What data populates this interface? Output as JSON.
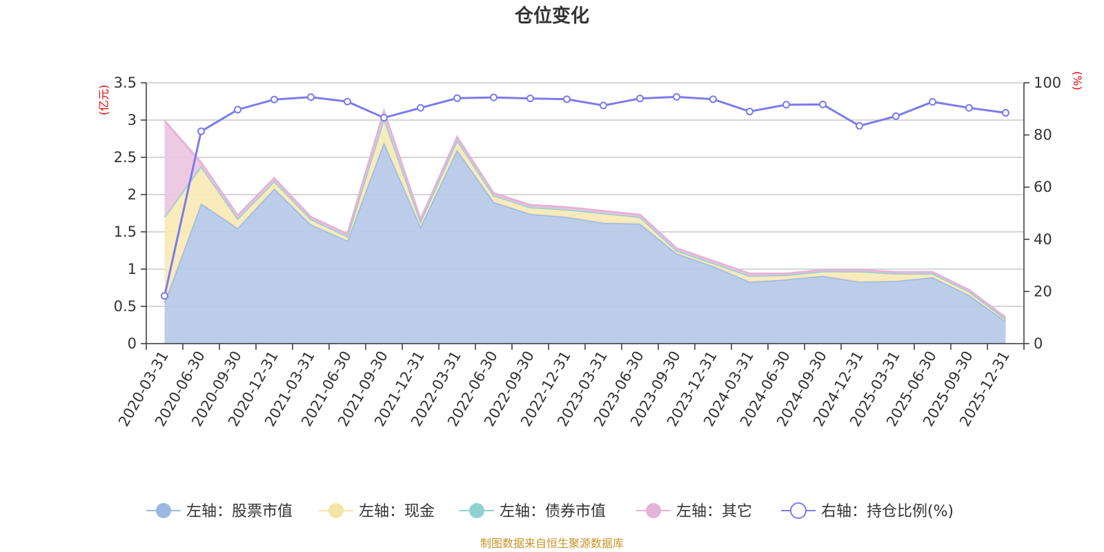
{
  "chart_data": {
    "type": "area",
    "title": "仓位变化",
    "left_axis_unit": "(亿元)",
    "right_axis_unit": "(%)",
    "left_ylim": [
      0,
      3.5
    ],
    "left_yticks": [
      "0",
      "0.5",
      "1",
      "1.5",
      "2",
      "2.5",
      "3",
      "3.5"
    ],
    "right_ylim": [
      0,
      100
    ],
    "right_yticks": [
      "0",
      "20",
      "40",
      "60",
      "80",
      "100"
    ],
    "grid": true,
    "legend_position": "bottom",
    "source": "制图数据来自恒生聚源数据库",
    "categories": [
      "2020-03-31",
      "2020-06-30",
      "2020-09-30",
      "2020-12-31",
      "2021-03-31",
      "2021-06-30",
      "2021-09-30",
      "2021-12-31",
      "2022-03-31",
      "2022-06-30",
      "2022-09-30",
      "2022-12-31",
      "2023-03-31",
      "2023-06-30",
      "2023-09-30",
      "2023-12-31",
      "2024-03-31",
      "2024-06-30",
      "2024-09-30",
      "2024-12-31",
      "2025-03-31",
      "2025-06-30",
      "2025-09-30",
      "2025-12-31"
    ],
    "series": [
      {
        "name": "左轴：股票市值",
        "axis": "left",
        "kind": "stacked-area",
        "color": "#9cb8e2",
        "fill": "#b6c9e8",
        "values": [
          0.55,
          1.88,
          1.55,
          2.08,
          1.6,
          1.38,
          2.7,
          1.57,
          2.6,
          1.9,
          1.74,
          1.7,
          1.62,
          1.61,
          1.21,
          1.04,
          0.83,
          0.86,
          0.91,
          0.83,
          0.84,
          0.89,
          0.65,
          0.3
        ]
      },
      {
        "name": "左轴：现金",
        "axis": "left",
        "kind": "stacked-area",
        "color": "#f5e4a2",
        "fill": "#f8e9b6",
        "values": [
          1.15,
          0.5,
          0.13,
          0.1,
          0.07,
          0.06,
          0.32,
          0.07,
          0.13,
          0.09,
          0.09,
          0.1,
          0.13,
          0.09,
          0.04,
          0.04,
          0.08,
          0.06,
          0.06,
          0.14,
          0.1,
          0.05,
          0.05,
          0.03
        ]
      },
      {
        "name": "左轴：债券市值",
        "axis": "left",
        "kind": "stacked-area",
        "color": "#8fd1d1",
        "fill": "#a8dcdc",
        "values": [
          0,
          0,
          0,
          0,
          0,
          0,
          0,
          0,
          0,
          0,
          0,
          0,
          0,
          0,
          0,
          0,
          0,
          0,
          0,
          0,
          0,
          0,
          0,
          0
        ]
      },
      {
        "name": "左轴：其它",
        "axis": "left",
        "kind": "stacked-area",
        "color": "#e6b3d8",
        "fill": "#ecc4e0",
        "values": [
          1.29,
          0.05,
          0.04,
          0.04,
          0.03,
          0.03,
          0.1,
          0.03,
          0.04,
          0.03,
          0.03,
          0.03,
          0.03,
          0.03,
          0.03,
          0.03,
          0.03,
          0.02,
          0.02,
          0.02,
          0.02,
          0.02,
          0.02,
          0.02
        ]
      },
      {
        "name": "右轴：持仓比例(%)",
        "axis": "right",
        "kind": "line",
        "color": "#7b7bea",
        "values": [
          18.3,
          81.4,
          89.7,
          93.6,
          94.5,
          92.8,
          86.6,
          90.4,
          94.1,
          94.4,
          94.0,
          93.7,
          91.3,
          94.0,
          94.6,
          93.7,
          89.0,
          91.6,
          91.7,
          83.5,
          87.2,
          92.7,
          90.4,
          88.5
        ]
      }
    ]
  }
}
